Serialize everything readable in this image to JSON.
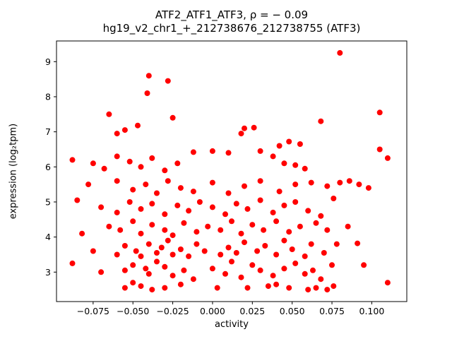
{
  "chart_data": {
    "type": "scatter",
    "title": "ATF2_ATF1_ATF3, ρ = − 0.09",
    "subtitle": "hg19_v2_chr1_+_212738676_212738755 (ATF3)",
    "xlabel": "activity",
    "ylabel": "expression (log₂tpm)",
    "marker_color": "#ff0000",
    "axes_color": "#000000",
    "background_color": "#ffffff",
    "xlim": [
      -0.098,
      0.122
    ],
    "ylim": [
      2.16,
      9.59
    ],
    "grid": false,
    "legend": "none",
    "xticks": {
      "values": [
        -0.075,
        -0.05,
        -0.025,
        0.0,
        0.025,
        0.05,
        0.075,
        0.1
      ],
      "labels": [
        "−0.075",
        "−0.050",
        "−0.025",
        "0.000",
        "0.025",
        "0.050",
        "0.075",
        "0.100"
      ]
    },
    "yticks": {
      "values": [
        3,
        4,
        5,
        6,
        7,
        8,
        9
      ],
      "labels": [
        "3",
        "4",
        "5",
        "6",
        "7",
        "8",
        "9"
      ]
    },
    "points": [
      [
        0.08,
        9.25
      ],
      [
        -0.04,
        8.6
      ],
      [
        -0.028,
        8.45
      ],
      [
        -0.041,
        8.1
      ],
      [
        -0.065,
        7.5
      ],
      [
        -0.025,
        7.4
      ],
      [
        0.068,
        7.3
      ],
      [
        0.105,
        7.55
      ],
      [
        0.02,
        7.1
      ],
      [
        0.026,
        7.12
      ],
      [
        -0.055,
        7.05
      ],
      [
        -0.06,
        6.95
      ],
      [
        -0.047,
        7.18
      ],
      [
        0.018,
        6.95
      ],
      [
        0.048,
        6.72
      ],
      [
        0.055,
        6.65
      ],
      [
        0.042,
        6.6
      ],
      [
        -0.012,
        6.42
      ],
      [
        0.0,
        6.45
      ],
      [
        0.01,
        6.4
      ],
      [
        0.03,
        6.45
      ],
      [
        0.105,
        6.5
      ],
      [
        0.11,
        6.25
      ],
      [
        -0.088,
        6.2
      ],
      [
        -0.075,
        6.1
      ],
      [
        -0.068,
        5.95
      ],
      [
        -0.06,
        6.3
      ],
      [
        -0.052,
        6.15
      ],
      [
        -0.045,
        6.0
      ],
      [
        -0.038,
        6.25
      ],
      [
        -0.03,
        5.9
      ],
      [
        -0.022,
        6.1
      ],
      [
        0.045,
        6.1
      ],
      [
        0.052,
        6.05
      ],
      [
        0.058,
        5.95
      ],
      [
        0.038,
        6.3
      ],
      [
        -0.078,
        5.5
      ],
      [
        -0.06,
        5.6
      ],
      [
        -0.05,
        5.35
      ],
      [
        -0.042,
        5.5
      ],
      [
        -0.035,
        5.25
      ],
      [
        -0.028,
        5.6
      ],
      [
        -0.02,
        5.4
      ],
      [
        -0.012,
        5.3
      ],
      [
        0.0,
        5.55
      ],
      [
        0.01,
        5.25
      ],
      [
        0.02,
        5.45
      ],
      [
        0.03,
        5.6
      ],
      [
        0.042,
        5.3
      ],
      [
        0.052,
        5.5
      ],
      [
        0.062,
        5.55
      ],
      [
        0.072,
        5.45
      ],
      [
        0.08,
        5.55
      ],
      [
        0.086,
        5.6
      ],
      [
        0.092,
        5.5
      ],
      [
        0.098,
        5.4
      ],
      [
        -0.085,
        5.05
      ],
      [
        -0.07,
        4.85
      ],
      [
        -0.06,
        4.7
      ],
      [
        -0.052,
        5.0
      ],
      [
        -0.045,
        4.8
      ],
      [
        -0.038,
        4.95
      ],
      [
        -0.03,
        4.65
      ],
      [
        -0.022,
        4.9
      ],
      [
        -0.015,
        4.75
      ],
      [
        -0.008,
        5.0
      ],
      [
        0.0,
        4.85
      ],
      [
        0.008,
        4.65
      ],
      [
        0.015,
        4.95
      ],
      [
        0.022,
        4.8
      ],
      [
        0.03,
        5.05
      ],
      [
        0.038,
        4.7
      ],
      [
        0.045,
        4.9
      ],
      [
        0.052,
        5.0
      ],
      [
        0.06,
        4.75
      ],
      [
        0.068,
        4.6
      ],
      [
        0.076,
        5.1
      ],
      [
        -0.082,
        4.1
      ],
      [
        -0.065,
        4.3
      ],
      [
        -0.058,
        4.2
      ],
      [
        -0.05,
        4.45
      ],
      [
        -0.045,
        4.1
      ],
      [
        -0.038,
        4.35
      ],
      [
        -0.03,
        4.2
      ],
      [
        -0.025,
        4.05
      ],
      [
        -0.018,
        4.4
      ],
      [
        -0.01,
        4.15
      ],
      [
        -0.003,
        4.3
      ],
      [
        0.005,
        4.2
      ],
      [
        0.012,
        4.45
      ],
      [
        0.018,
        4.1
      ],
      [
        0.025,
        4.35
      ],
      [
        0.032,
        4.2
      ],
      [
        0.04,
        4.45
      ],
      [
        0.048,
        4.15
      ],
      [
        0.055,
        4.3
      ],
      [
        0.065,
        4.4
      ],
      [
        0.072,
        4.2
      ],
      [
        0.085,
        4.3
      ],
      [
        -0.075,
        3.6
      ],
      [
        -0.06,
        3.5
      ],
      [
        -0.055,
        3.75
      ],
      [
        -0.048,
        3.6
      ],
      [
        -0.045,
        3.45
      ],
      [
        -0.04,
        3.8
      ],
      [
        -0.035,
        3.55
      ],
      [
        -0.032,
        3.7
      ],
      [
        -0.028,
        3.9
      ],
      [
        -0.025,
        3.5
      ],
      [
        -0.02,
        3.65
      ],
      [
        -0.015,
        3.45
      ],
      [
        -0.01,
        3.8
      ],
      [
        -0.005,
        3.6
      ],
      [
        0.005,
        3.5
      ],
      [
        0.01,
        3.7
      ],
      [
        0.015,
        3.55
      ],
      [
        0.02,
        3.85
      ],
      [
        0.028,
        3.6
      ],
      [
        0.033,
        3.75
      ],
      [
        0.04,
        3.5
      ],
      [
        0.045,
        3.9
      ],
      [
        0.05,
        3.65
      ],
      [
        0.058,
        3.45
      ],
      [
        0.062,
        3.8
      ],
      [
        0.07,
        3.55
      ],
      [
        0.078,
        3.8
      ],
      [
        0.091,
        3.82
      ],
      [
        -0.088,
        3.25
      ],
      [
        -0.07,
        3.0
      ],
      [
        -0.055,
        3.05
      ],
      [
        -0.05,
        3.2
      ],
      [
        -0.042,
        3.1
      ],
      [
        -0.04,
        2.95
      ],
      [
        -0.035,
        3.3
      ],
      [
        -0.03,
        3.15
      ],
      [
        -0.025,
        2.9
      ],
      [
        -0.018,
        3.05
      ],
      [
        -0.012,
        2.8
      ],
      [
        0.0,
        3.1
      ],
      [
        0.008,
        2.95
      ],
      [
        0.012,
        3.3
      ],
      [
        0.018,
        2.85
      ],
      [
        0.025,
        3.2
      ],
      [
        0.03,
        3.05
      ],
      [
        0.038,
        2.9
      ],
      [
        0.045,
        3.1
      ],
      [
        0.052,
        3.25
      ],
      [
        0.058,
        2.95
      ],
      [
        0.063,
        3.05
      ],
      [
        0.068,
        2.8
      ],
      [
        0.075,
        3.2
      ],
      [
        0.095,
        3.2
      ],
      [
        -0.055,
        2.55
      ],
      [
        -0.05,
        2.7
      ],
      [
        -0.045,
        2.6
      ],
      [
        -0.038,
        2.5
      ],
      [
        -0.03,
        2.55
      ],
      [
        -0.02,
        2.65
      ],
      [
        0.003,
        2.55
      ],
      [
        0.022,
        2.55
      ],
      [
        0.035,
        2.6
      ],
      [
        0.04,
        2.65
      ],
      [
        0.048,
        2.55
      ],
      [
        0.06,
        2.5
      ],
      [
        0.065,
        2.55
      ],
      [
        0.072,
        2.5
      ],
      [
        0.076,
        2.6
      ],
      [
        0.11,
        2.7
      ]
    ]
  }
}
